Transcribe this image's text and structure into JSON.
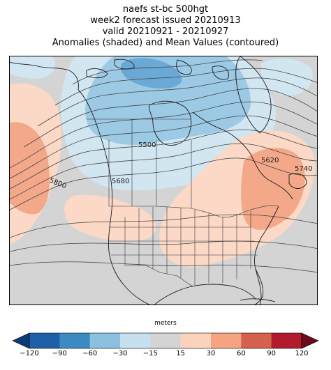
{
  "title": {
    "line1": "naefs st-bc 500hgt",
    "line2": "week2 forecast issued 20210913",
    "line3": "valid 20210921 - 20210927",
    "line4": "Anomalies (shaded) and Mean Values (contoured)"
  },
  "contour_labels": [
    "5500",
    "5620",
    "5680",
    "5740",
    "5800"
  ],
  "colorbar": {
    "label": "meters",
    "ticks": [
      "−120",
      "−90",
      "−60",
      "−30",
      "−15",
      "15",
      "30",
      "60",
      "90",
      "120"
    ],
    "colors": [
      "#1f5fa8",
      "#3c8ac2",
      "#8cc0df",
      "#c6e0ef",
      "#d4d4d4",
      "#fbd3bd",
      "#f4a480",
      "#d6614e",
      "#b21a2e"
    ],
    "extend_low_color": "#0b3d73",
    "extend_high_color": "#6b0a1c"
  },
  "shading_colors": {
    "neutral": "#d4d4d4",
    "neg_light": "#d2e6f2",
    "neg_mid": "#9cc9e4",
    "neg_strong": "#6aa8d6",
    "pos_light": "#fbd9c6",
    "pos_mid": "#f2a889",
    "pos_strong": "#e8896b"
  }
}
